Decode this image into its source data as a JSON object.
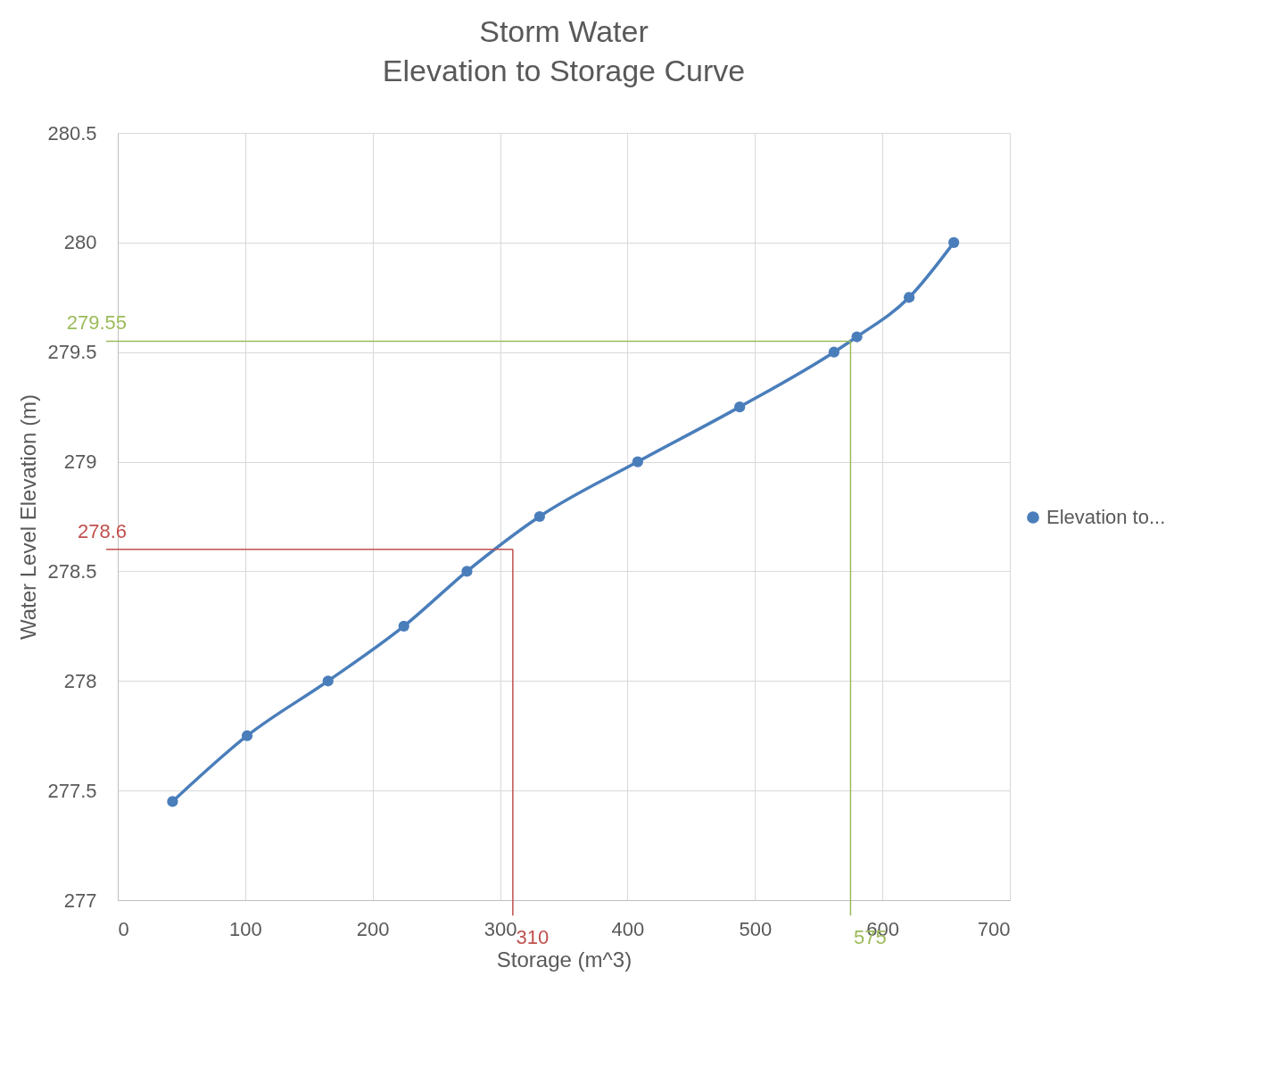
{
  "chart_data": {
    "type": "line",
    "title": "Storm Water",
    "subtitle": "Elevation to Storage Curve",
    "xlabel": "Storage (m^3)",
    "ylabel": "Water Level Elevation (m)",
    "x": [
      43,
      101.5,
      165,
      224.5,
      274,
      331,
      408,
      488,
      562,
      580,
      621,
      656
    ],
    "series": [
      {
        "name": "Elevation to...",
        "color": "#4a7ebb",
        "values": [
          277.45,
          277.75,
          278,
          278.25,
          278.5,
          278.75,
          279,
          279.25,
          279.5,
          279.57,
          279.75,
          280
        ]
      }
    ],
    "xlim": [
      0,
      700
    ],
    "xticks": [
      0,
      100,
      200,
      300,
      400,
      500,
      600,
      700
    ],
    "ylim": [
      277,
      280.5
    ],
    "yticks": [
      277,
      277.5,
      278,
      278.5,
      279,
      279.5,
      280,
      280.5
    ],
    "grid": true,
    "legend": "right",
    "marker": "circle",
    "line_style": "solid",
    "ref_lines": [
      {
        "axis": "y",
        "value": 278.6,
        "label": "278.6",
        "color": "#c0504d"
      },
      {
        "axis": "x",
        "value": 310,
        "label": "310",
        "color": "#c0504d"
      },
      {
        "axis": "y",
        "value": 279.55,
        "label": "279.55",
        "color": "#9bbb59"
      },
      {
        "axis": "x",
        "value": 575,
        "label": "575",
        "color": "#9bbb59"
      }
    ]
  }
}
